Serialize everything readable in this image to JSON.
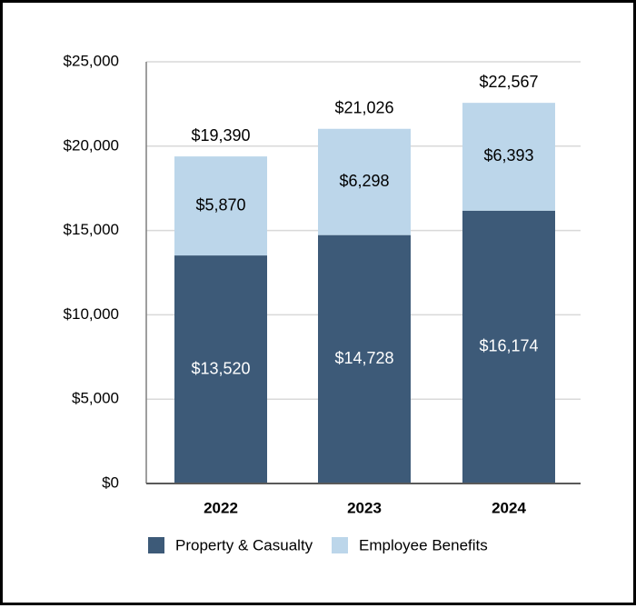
{
  "chart_data": {
    "type": "bar",
    "stacked": true,
    "categories": [
      "2022",
      "2023",
      "2024"
    ],
    "series": [
      {
        "name": "Property & Casualty",
        "values": [
          13520,
          14728,
          16174
        ],
        "labels": [
          "$13,520",
          "$14,728",
          "$16,174"
        ],
        "color": "#3d5a78"
      },
      {
        "name": "Employee Benefits",
        "values": [
          5870,
          6298,
          6393
        ],
        "labels": [
          "$5,870",
          "$6,298",
          "$6,393"
        ],
        "color": "#bcd6ea"
      }
    ],
    "totals": [
      19390,
      21026,
      22567
    ],
    "total_labels": [
      "$19,390",
      "$21,026",
      "$22,567"
    ],
    "ylim": [
      0,
      25000
    ],
    "yticks": [
      0,
      5000,
      10000,
      15000,
      20000,
      25000
    ],
    "ytick_labels": [
      "$0",
      "$5,000",
      "$10,000",
      "$15,000",
      "$20,000",
      "$25,000"
    ],
    "grid": true,
    "legend_position": "bottom",
    "title": "",
    "xlabel": "",
    "ylabel": ""
  }
}
